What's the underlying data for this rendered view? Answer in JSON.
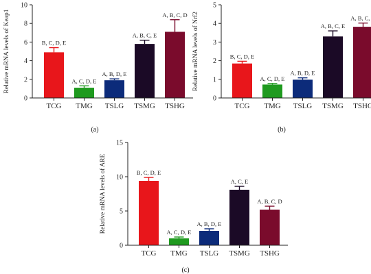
{
  "chart_data": [
    {
      "type": "bar",
      "panel_label": "(a)",
      "ylabel": "Relative mRNA levels of Keap1",
      "categories": [
        "TCG",
        "TMG",
        "TSLG",
        "TSMG",
        "TSHG"
      ],
      "values": [
        4.9,
        1.1,
        1.9,
        5.8,
        7.1
      ],
      "errors": [
        0.5,
        0.2,
        0.15,
        0.4,
        1.3
      ],
      "annotations": [
        "B, C, D, E",
        "A, C, D, E",
        "A, B, D, E",
        "A, B, C, E",
        "A, B, C, D"
      ],
      "ylim": [
        0,
        10
      ],
      "yticks": [
        0,
        2,
        4,
        6,
        8,
        10
      ],
      "colors": [
        "#e8161b",
        "#1f9a1f",
        "#0c2b7a",
        "#1b0a26",
        "#7a0b2c"
      ],
      "grid": false,
      "legend": "none"
    },
    {
      "type": "bar",
      "panel_label": "(b)",
      "ylabel": "Relative mRNA levels of Nrf2",
      "categories": [
        "TCG",
        "TMG",
        "TSLG",
        "TSMG",
        "TSHG"
      ],
      "values": [
        1.85,
        0.72,
        0.98,
        3.3,
        3.82
      ],
      "errors": [
        0.12,
        0.06,
        0.1,
        0.3,
        0.2
      ],
      "annotations": [
        "B, C, D, E",
        "A, C, D, E",
        "A, B, D, E",
        "A, B, C, E",
        "A, B, C, D"
      ],
      "ylim": [
        0,
        5
      ],
      "yticks": [
        0,
        1,
        2,
        3,
        4,
        5
      ],
      "colors": [
        "#e8161b",
        "#1f9a1f",
        "#0c2b7a",
        "#1b0a26",
        "#7a0b2c"
      ],
      "grid": false,
      "legend": "none"
    },
    {
      "type": "bar",
      "panel_label": "(c)",
      "ylabel": "Relative mRNA levels of ARE",
      "categories": [
        "TCG",
        "TMG",
        "TSLG",
        "TSMG",
        "TSHG"
      ],
      "values": [
        9.4,
        1.0,
        2.1,
        8.1,
        5.2
      ],
      "errors": [
        0.5,
        0.2,
        0.3,
        0.5,
        0.5
      ],
      "annotations": [
        "B, C, D, E",
        "A, C, D, E",
        "A, B, D, E",
        "A, C, E",
        "A, B, C, D"
      ],
      "ylim": [
        0,
        15
      ],
      "yticks": [
        0,
        5,
        10,
        15
      ],
      "colors": [
        "#e8161b",
        "#1f9a1f",
        "#0c2b7a",
        "#1b0a26",
        "#7a0b2c"
      ],
      "grid": false,
      "legend": "none"
    }
  ]
}
